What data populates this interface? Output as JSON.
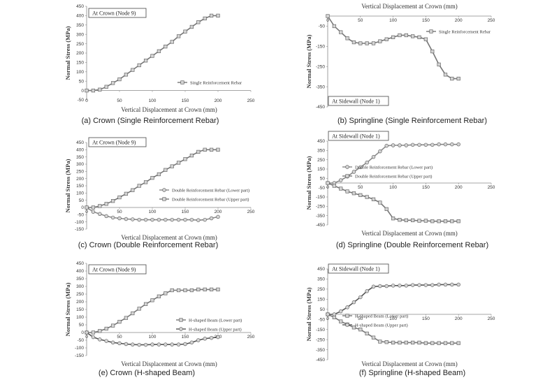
{
  "chart_data": [
    {
      "type": "line",
      "caption": "(a) Crown (Single Reinforcement Rebar)",
      "box_label": "At Crown (Node 9)",
      "xlabel": "Vertical Displacement at Crown (mm)",
      "ylabel": "Normal Stress (MPa)",
      "xlim": [
        0,
        250
      ],
      "ylim": [
        -50,
        450
      ],
      "xticks": [
        "0",
        "50",
        "100",
        "150",
        "200",
        "250"
      ],
      "yticks": [
        "-50",
        "0",
        "50",
        "100",
        "150",
        "200",
        "250",
        "300",
        "350",
        "400",
        "450"
      ],
      "series": [
        {
          "name": "Single Reinforcement Rebar",
          "marker": "square",
          "color": "#777777",
          "x": [
            0,
            10,
            20,
            30,
            40,
            50,
            60,
            70,
            80,
            90,
            100,
            110,
            120,
            130,
            140,
            150,
            160,
            170,
            180,
            190,
            200
          ],
          "y": [
            0,
            0,
            5,
            20,
            40,
            60,
            85,
            110,
            135,
            160,
            185,
            210,
            235,
            260,
            290,
            315,
            340,
            365,
            385,
            400,
            400
          ]
        }
      ]
    },
    {
      "type": "line",
      "caption": "(b) Springline (Single Reinforcement Rebar)",
      "box_label": "At Sidewall (Node 1)",
      "xlabel": "Vertical Displacement at Crown (mm)",
      "ylabel": "Normal Stress (MPa)",
      "xlim": [
        0,
        250
      ],
      "ylim": [
        -450,
        0
      ],
      "xticks": [
        "0",
        "50",
        "100",
        "150",
        "200",
        "250"
      ],
      "yticks": [
        "-50",
        "-150",
        "-250",
        "-350",
        "-450"
      ],
      "series": [
        {
          "name": "Single Reinforcement Rebar",
          "marker": "square",
          "color": "#777777",
          "x": [
            0,
            10,
            20,
            30,
            40,
            50,
            60,
            70,
            80,
            90,
            100,
            110,
            120,
            130,
            140,
            150,
            160,
            170,
            180,
            190,
            200
          ],
          "y": [
            0,
            -50,
            -80,
            -110,
            -130,
            -135,
            -135,
            -135,
            -125,
            -115,
            -105,
            -95,
            -95,
            -100,
            -105,
            -115,
            -175,
            -240,
            -290,
            -310,
            -310
          ]
        }
      ]
    },
    {
      "type": "line",
      "caption": "(c) Crown (Double Reinforcement Rebar)",
      "box_label": "At Crown (Node 9)",
      "xlabel": "Vertical Displacement at Crown (mm)",
      "ylabel": "Normal Stress (MPa)",
      "xlim": [
        0,
        250
      ],
      "ylim": [
        -150,
        450
      ],
      "xticks": [
        "0",
        "50",
        "100",
        "150",
        "200",
        "250"
      ],
      "yticks": [
        "-150",
        "-100",
        "-50",
        "0",
        "50",
        "100",
        "150",
        "200",
        "250",
        "300",
        "350",
        "400",
        "450"
      ],
      "series": [
        {
          "name": "Double Reinforcement Rebar (Lower part)",
          "marker": "circle",
          "color": "#888888",
          "x": [
            0,
            10,
            20,
            30,
            40,
            50,
            60,
            70,
            80,
            90,
            100,
            110,
            120,
            130,
            140,
            150,
            160,
            170,
            180,
            190,
            200
          ],
          "y": [
            0,
            -30,
            -45,
            -60,
            -70,
            -75,
            -80,
            -82,
            -85,
            -85,
            -85,
            -85,
            -85,
            -85,
            -85,
            -85,
            -85,
            -88,
            -85,
            -75,
            -65
          ]
        },
        {
          "name": "Double Reinforcement Rebar (Upper part)",
          "marker": "square",
          "color": "#777777",
          "x": [
            0,
            10,
            20,
            30,
            40,
            50,
            60,
            70,
            80,
            90,
            100,
            110,
            120,
            130,
            140,
            150,
            160,
            170,
            180,
            190,
            200
          ],
          "y": [
            0,
            0,
            10,
            25,
            45,
            70,
            95,
            120,
            150,
            175,
            205,
            230,
            260,
            285,
            310,
            335,
            360,
            385,
            400,
            400,
            400
          ]
        }
      ]
    },
    {
      "type": "line",
      "caption": "(d) Springline (Double Reinforcement Rebar)",
      "box_label": "At Sidewall (Node 1)",
      "xlabel": "Vertical Displacement at Crown (mm)",
      "ylabel": "Normal Stress (MPa)",
      "xlim": [
        0,
        250
      ],
      "ylim": [
        -450,
        450
      ],
      "xticks": [
        "0",
        "50",
        "100",
        "150",
        "200",
        "250"
      ],
      "yticks": [
        "-450",
        "-350",
        "-250",
        "-150",
        "-50",
        "50",
        "150",
        "250",
        "350",
        "450"
      ],
      "series": [
        {
          "name": "Double Reinforcement Rebar (Lower part)",
          "marker": "circle",
          "color": "#888888",
          "x": [
            0,
            10,
            20,
            30,
            40,
            50,
            60,
            70,
            80,
            90,
            100,
            110,
            120,
            130,
            140,
            150,
            160,
            170,
            180,
            190,
            200
          ],
          "y": [
            0,
            0,
            30,
            70,
            120,
            170,
            220,
            280,
            340,
            400,
            405,
            405,
            405,
            410,
            410,
            410,
            410,
            415,
            415,
            415,
            415
          ]
        },
        {
          "name": "Double Reinforcement Rebar (Upper part)",
          "marker": "square",
          "color": "#777777",
          "x": [
            0,
            10,
            20,
            30,
            40,
            50,
            60,
            70,
            80,
            90,
            100,
            110,
            120,
            130,
            140,
            150,
            160,
            170,
            180,
            190,
            200
          ],
          "y": [
            0,
            -30,
            -60,
            -90,
            -110,
            -130,
            -150,
            -175,
            -210,
            -280,
            -380,
            -395,
            -400,
            -400,
            -405,
            -405,
            -410,
            -410,
            -410,
            -410,
            -410
          ]
        }
      ]
    },
    {
      "type": "line",
      "caption": "(e) Crown (H-shaped Beam)",
      "box_label": "At Crown (Node 9)",
      "xlabel": "Vertical Displacement at Crown (mm)",
      "ylabel": "Normal Stress (MPa)",
      "xlim": [
        0,
        250
      ],
      "ylim": [
        -150,
        450
      ],
      "xticks": [
        "0",
        "50",
        "100",
        "150",
        "200",
        "250"
      ],
      "yticks": [
        "-150",
        "-100",
        "-50",
        "0",
        "50",
        "100",
        "150",
        "200",
        "250",
        "300",
        "350",
        "400",
        "450"
      ],
      "series": [
        {
          "name": "H-shaped Beam (Lower part)",
          "marker": "square",
          "color": "#777777",
          "x": [
            0,
            10,
            20,
            30,
            40,
            50,
            60,
            70,
            80,
            90,
            100,
            110,
            120,
            130,
            140,
            150,
            160,
            170,
            180,
            190,
            200
          ],
          "y": [
            0,
            0,
            10,
            25,
            45,
            70,
            95,
            125,
            155,
            185,
            210,
            235,
            255,
            275,
            275,
            275,
            275,
            280,
            280,
            280,
            280
          ]
        },
        {
          "name": "H-shaped Beam (Upper part)",
          "marker": "circle",
          "color": "#555555",
          "x": [
            0,
            10,
            20,
            30,
            40,
            50,
            60,
            70,
            80,
            90,
            100,
            110,
            120,
            130,
            140,
            150,
            160,
            170,
            180,
            190,
            200
          ],
          "y": [
            0,
            -30,
            -45,
            -55,
            -65,
            -70,
            -75,
            -78,
            -80,
            -80,
            -78,
            -78,
            -78,
            -78,
            -78,
            -75,
            -65,
            -50,
            -40,
            -35,
            -30
          ]
        }
      ]
    },
    {
      "type": "line",
      "caption": "(f) Springline (H-shaped Beam)",
      "box_label": "At Sidewall (Node 1)",
      "xlabel": "Vertical Displacement at Crown (mm)",
      "ylabel": "Normal Stress (MPa)",
      "xlim": [
        0,
        250
      ],
      "ylim": [
        -450,
        450
      ],
      "xticks": [
        "0",
        "50",
        "100",
        "150",
        "200",
        "250"
      ],
      "yticks": [
        "-450",
        "-350",
        "-250",
        "-150",
        "-50",
        "50",
        "150",
        "250",
        "350",
        "450"
      ],
      "series": [
        {
          "name": "H-shaped Beam (Lower part)",
          "marker": "square",
          "color": "#777777",
          "x": [
            0,
            10,
            20,
            30,
            40,
            50,
            60,
            70,
            80,
            90,
            100,
            110,
            120,
            130,
            140,
            150,
            160,
            170,
            180,
            190,
            200
          ],
          "y": [
            0,
            -30,
            -70,
            -100,
            -130,
            -150,
            -190,
            -230,
            -270,
            -275,
            -280,
            -280,
            -280,
            -280,
            -280,
            -285,
            -285,
            -285,
            -285,
            -285,
            -285
          ]
        },
        {
          "name": "H-shaped Beam (Upper part)",
          "marker": "circle",
          "color": "#555555",
          "x": [
            0,
            10,
            20,
            30,
            40,
            50,
            60,
            70,
            80,
            90,
            100,
            110,
            120,
            130,
            140,
            150,
            160,
            170,
            180,
            190,
            200
          ],
          "y": [
            0,
            0,
            30,
            70,
            120,
            170,
            230,
            275,
            280,
            280,
            285,
            285,
            285,
            290,
            290,
            290,
            290,
            295,
            295,
            295,
            295
          ]
        }
      ]
    }
  ]
}
